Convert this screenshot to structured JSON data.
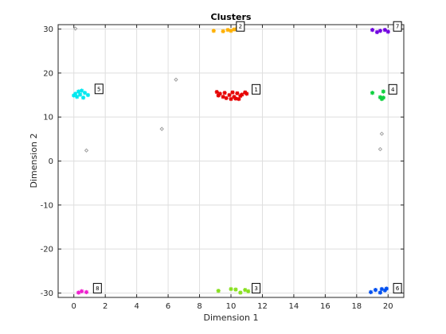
{
  "chart_data": {
    "type": "scatter",
    "title": "Clusters",
    "xlabel": "Dimension 1",
    "ylabel": "Dimension 2",
    "xlim": [
      -1,
      21
    ],
    "ylim": [
      -31,
      31
    ],
    "xticks": [
      0,
      2,
      4,
      6,
      8,
      10,
      12,
      14,
      16,
      18,
      20
    ],
    "yticks": [
      -30,
      -20,
      -10,
      0,
      10,
      20,
      30
    ],
    "grid": true,
    "clusters": [
      {
        "label": "1",
        "color": "#e60000",
        "points": [
          [
            9.1,
            15.7
          ],
          [
            9.2,
            14.9
          ],
          [
            9.3,
            15.3
          ],
          [
            9.5,
            14.6
          ],
          [
            9.6,
            15.5
          ],
          [
            9.7,
            14.3
          ],
          [
            9.9,
            15.0
          ],
          [
            10.0,
            14.1
          ],
          [
            10.1,
            15.6
          ],
          [
            10.2,
            14.6
          ],
          [
            10.3,
            14.2
          ],
          [
            10.4,
            15.4
          ],
          [
            10.5,
            14.1
          ],
          [
            10.6,
            14.8
          ],
          [
            10.7,
            15.1
          ],
          [
            10.9,
            15.6
          ],
          [
            11.0,
            15.3
          ]
        ],
        "annotation": [
          11.6,
          16.3
        ]
      },
      {
        "label": "2",
        "color": "#ffb000",
        "points": [
          [
            8.9,
            29.6
          ],
          [
            9.5,
            29.5
          ],
          [
            9.8,
            29.8
          ],
          [
            10.0,
            29.6
          ],
          [
            10.2,
            29.9
          ],
          [
            10.4,
            30.2
          ]
        ],
        "annotation": [
          10.6,
          30.6
        ]
      },
      {
        "label": "3",
        "color": "#88e020",
        "points": [
          [
            9.2,
            -29.5
          ],
          [
            10.0,
            -29.1
          ],
          [
            10.3,
            -29.2
          ],
          [
            10.6,
            -29.9
          ],
          [
            10.9,
            -29.3
          ],
          [
            11.1,
            -29.6
          ]
        ],
        "annotation": [
          11.6,
          -28.9
        ]
      },
      {
        "label": "4",
        "color": "#10d040",
        "points": [
          [
            19.0,
            15.5
          ],
          [
            19.5,
            14.5
          ],
          [
            19.6,
            14.1
          ],
          [
            19.7,
            14.4
          ],
          [
            19.7,
            15.8
          ]
        ],
        "annotation": [
          20.3,
          16.3
        ]
      },
      {
        "label": "5",
        "color": "#00e8f0",
        "points": [
          [
            0.0,
            14.9
          ],
          [
            0.1,
            15.3
          ],
          [
            0.2,
            14.6
          ],
          [
            0.3,
            15.8
          ],
          [
            0.4,
            15.1
          ],
          [
            0.5,
            16.0
          ],
          [
            0.6,
            14.4
          ],
          [
            0.7,
            15.5
          ],
          [
            0.9,
            15.0
          ]
        ],
        "annotation": [
          1.6,
          16.4
        ]
      },
      {
        "label": "6",
        "color": "#0050f0",
        "points": [
          [
            18.9,
            -29.8
          ],
          [
            19.2,
            -29.3
          ],
          [
            19.5,
            -29.9
          ],
          [
            19.6,
            -29.1
          ],
          [
            19.8,
            -29.4
          ],
          [
            19.9,
            -29.0
          ]
        ],
        "annotation": [
          20.6,
          -28.9
        ]
      },
      {
        "label": "7",
        "color": "#7000e0",
        "points": [
          [
            19.0,
            29.8
          ],
          [
            19.3,
            29.3
          ],
          [
            19.5,
            29.6
          ],
          [
            19.8,
            29.8
          ],
          [
            20.0,
            29.4
          ]
        ],
        "annotation": [
          20.6,
          30.6
        ]
      },
      {
        "label": "8",
        "color": "#f020d0",
        "points": [
          [
            0.3,
            -29.9
          ],
          [
            0.5,
            -29.6
          ],
          [
            0.8,
            -29.8
          ]
        ],
        "annotation": [
          1.5,
          -28.9
        ]
      }
    ],
    "noise": {
      "color": "#a0a0a0",
      "points": [
        [
          0.1,
          30.1
        ],
        [
          0.8,
          2.4
        ],
        [
          5.6,
          7.3
        ],
        [
          6.5,
          18.5
        ],
        [
          19.6,
          6.2
        ],
        [
          19.5,
          2.7
        ]
      ]
    }
  }
}
